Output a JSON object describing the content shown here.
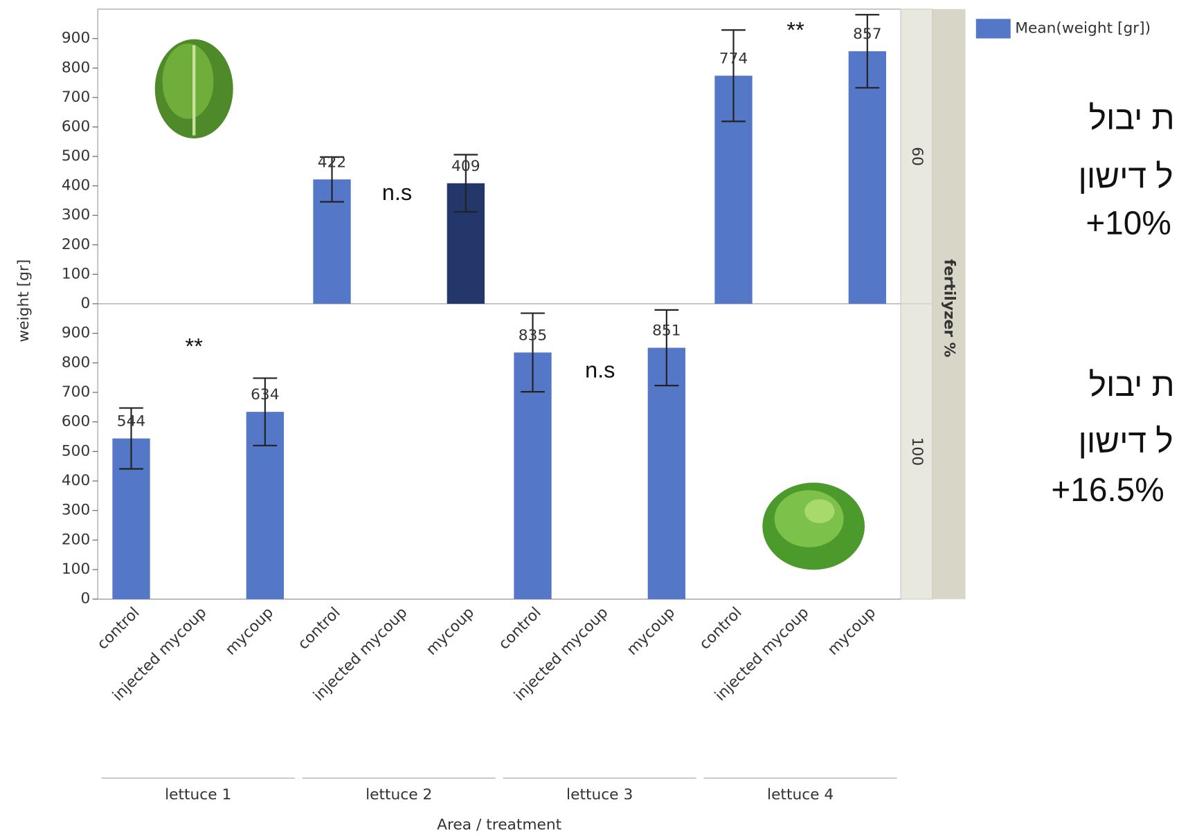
{
  "chart_data": {
    "type": "bar",
    "y_label": "weight [gr]",
    "x_label": "Area / treatment",
    "legend": {
      "name": "Mean(weight [gr])",
      "color": "#5577c8"
    },
    "facet_label": "fertilyzer %",
    "groups": [
      "lettuce 1",
      "lettuce 2",
      "lettuce 3",
      "lettuce 4"
    ],
    "categories": [
      "control",
      "injected mycoup",
      "mycoup",
      "control",
      "injected mycoup",
      "mycoup",
      "control",
      "injected mycoup",
      "mycoup",
      "control",
      "injected mycoup",
      "mycoup"
    ],
    "ylim": [
      0,
      1000
    ],
    "yticks": [
      0,
      100,
      200,
      300,
      400,
      500,
      600,
      700,
      800,
      900
    ],
    "panels": [
      {
        "label": "60",
        "values": [
          null,
          null,
          null,
          422,
          null,
          409,
          null,
          null,
          null,
          774,
          null,
          857
        ],
        "errors": [
          null,
          null,
          null,
          76,
          null,
          97,
          null,
          null,
          null,
          155,
          null,
          124
        ],
        "highlight": {
          "index": 5,
          "color": "#24376b"
        },
        "annotations": [
          "n.s",
          "**"
        ]
      },
      {
        "label": "100",
        "values": [
          544,
          null,
          634,
          null,
          null,
          null,
          835,
          null,
          851,
          null,
          null,
          null
        ],
        "errors": [
          103,
          null,
          114,
          null,
          null,
          null,
          133,
          null,
          128,
          null,
          null,
          null
        ],
        "annotations": [
          "**",
          "n.s"
        ]
      }
    ],
    "side_notes": [
      {
        "lines": [
          "ת יבול",
          "ל דישון",
          "+10%"
        ]
      },
      {
        "lines": [
          "ת יבול",
          "ל דישון",
          "+16.5%"
        ]
      }
    ]
  }
}
